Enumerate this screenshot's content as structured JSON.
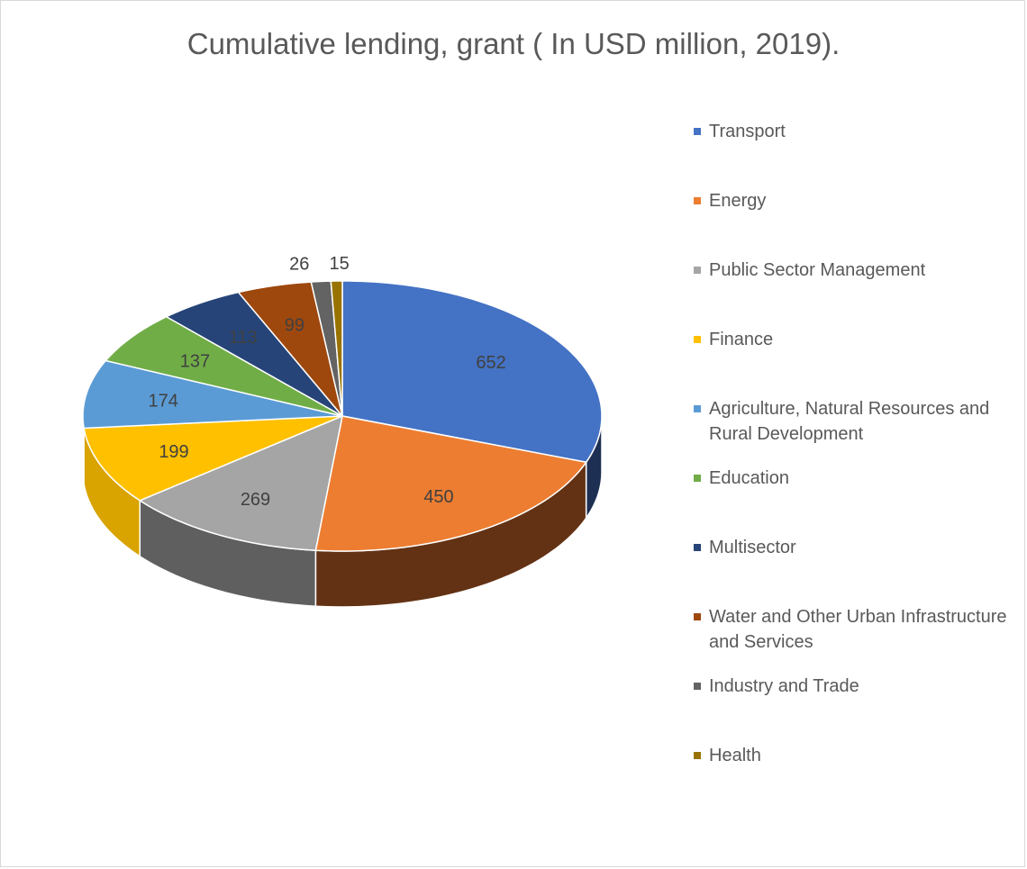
{
  "chart_data": {
    "type": "pie",
    "title": "Cumulative lending, grant ( In USD million, 2019).",
    "categories": [
      "Transport",
      "Energy",
      "Public Sector Management",
      "Finance",
      "Agriculture, Natural Resources and Rural Development",
      "Education",
      "Multisector",
      "Water and Other Urban Infrastructure and Services",
      "Industry and Trade",
      "Health"
    ],
    "values": [
      652,
      450,
      269,
      199,
      174,
      137,
      113,
      99,
      26,
      15
    ],
    "colors": [
      "#4472c4",
      "#ed7d31",
      "#a5a5a5",
      "#ffc000",
      "#5b9bd5",
      "#70ad47",
      "#264478",
      "#9e480e",
      "#636363",
      "#997300"
    ],
    "side_colors": [
      "#1d2f52",
      "#633214",
      "#5f5f5f",
      "#d9a300",
      "#2e5f8c",
      "#3f6b27",
      "#121f38",
      "#4f2407",
      "#3a3a3a",
      "#5c4500"
    ],
    "legend_position": "right",
    "style": "3d pie"
  }
}
